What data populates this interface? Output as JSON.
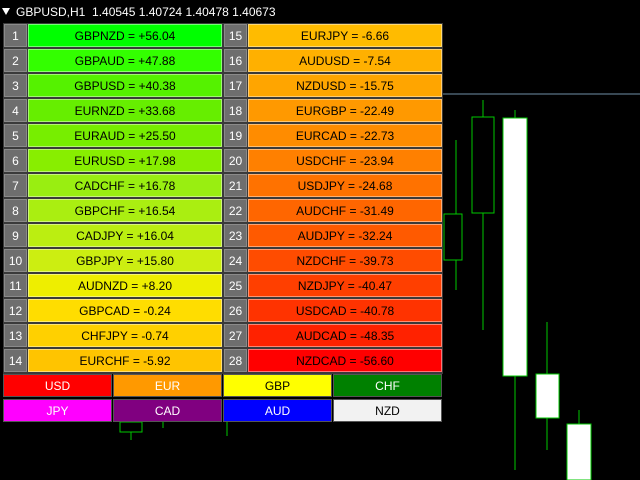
{
  "chart_title": "GBPUSD,H1  1.40545 1.40724 1.40478 1.40673",
  "left_column": [
    {
      "rank": "1",
      "label": "GBPNZD = +56.04",
      "color": "#00ff00"
    },
    {
      "rank": "2",
      "label": "GBPAUD = +47.88",
      "color": "#33ff00"
    },
    {
      "rank": "3",
      "label": "GBPUSD = +40.38",
      "color": "#55f200"
    },
    {
      "rank": "4",
      "label": "EURNZD = +33.68",
      "color": "#66ee00"
    },
    {
      "rank": "5",
      "label": "EURAUD = +25.50",
      "color": "#77ee00"
    },
    {
      "rank": "6",
      "label": "EURUSD = +17.98",
      "color": "#88ee00"
    },
    {
      "rank": "7",
      "label": "CADCHF = +16.78",
      "color": "#99ee11"
    },
    {
      "rank": "8",
      "label": "GBPCHF = +16.54",
      "color": "#aaee11"
    },
    {
      "rank": "9",
      "label": "CADJPY = +16.04",
      "color": "#bbee11"
    },
    {
      "rank": "10",
      "label": "GBPJPY = +15.80",
      "color": "#ccee11"
    },
    {
      "rank": "11",
      "label": "AUDNZD = +8.20",
      "color": "#eeee00"
    },
    {
      "rank": "12",
      "label": "GBPCAD = -0.24",
      "color": "#ffdd00"
    },
    {
      "rank": "13",
      "label": "CHFJPY = -0.74",
      "color": "#ffd000"
    },
    {
      "rank": "14",
      "label": "EURCHF = -5.92",
      "color": "#ffc400"
    }
  ],
  "right_column": [
    {
      "rank": "15",
      "label": "EURJPY = -6.66",
      "color": "#ffbb00"
    },
    {
      "rank": "16",
      "label": "AUDUSD = -7.54",
      "color": "#ffb000"
    },
    {
      "rank": "17",
      "label": "NZDUSD = -15.75",
      "color": "#ffa500"
    },
    {
      "rank": "18",
      "label": "EURGBP = -22.49",
      "color": "#ff9900"
    },
    {
      "rank": "19",
      "label": "EURCAD = -22.73",
      "color": "#ff8c00"
    },
    {
      "rank": "20",
      "label": "USDCHF = -23.94",
      "color": "#ff8000"
    },
    {
      "rank": "21",
      "label": "USDJPY = -24.68",
      "color": "#ff7200"
    },
    {
      "rank": "22",
      "label": "AUDCHF = -31.49",
      "color": "#ff6600"
    },
    {
      "rank": "23",
      "label": "AUDJPY = -32.24",
      "color": "#ff5a00"
    },
    {
      "rank": "24",
      "label": "NZDCHF = -39.73",
      "color": "#ff4c00"
    },
    {
      "rank": "25",
      "label": "NZDJPY = -40.47",
      "color": "#ff3f00"
    },
    {
      "rank": "26",
      "label": "USDCAD = -40.78",
      "color": "#ff3300"
    },
    {
      "rank": "27",
      "label": "AUDCAD = -48.35",
      "color": "#ff2200"
    },
    {
      "rank": "28",
      "label": "NZDCAD = -56.60",
      "color": "#ff0000"
    }
  ],
  "currencies": [
    {
      "label": "USD",
      "bg": "#ff0000",
      "fg": "#ffffff"
    },
    {
      "label": "EUR",
      "bg": "#ff9900",
      "fg": "#ffffff"
    },
    {
      "label": "GBP",
      "bg": "#ffff00",
      "fg": "#000000"
    },
    {
      "label": "CHF",
      "bg": "#008000",
      "fg": "#ffffff"
    },
    {
      "label": "JPY",
      "bg": "#ff00ff",
      "fg": "#ffffff"
    },
    {
      "label": "CAD",
      "bg": "#800080",
      "fg": "#ffffff"
    },
    {
      "label": "AUD",
      "bg": "#0000ff",
      "fg": "#ffffff"
    },
    {
      "label": "NZD",
      "bg": "#f2f2f2",
      "fg": "#000000"
    }
  ]
}
